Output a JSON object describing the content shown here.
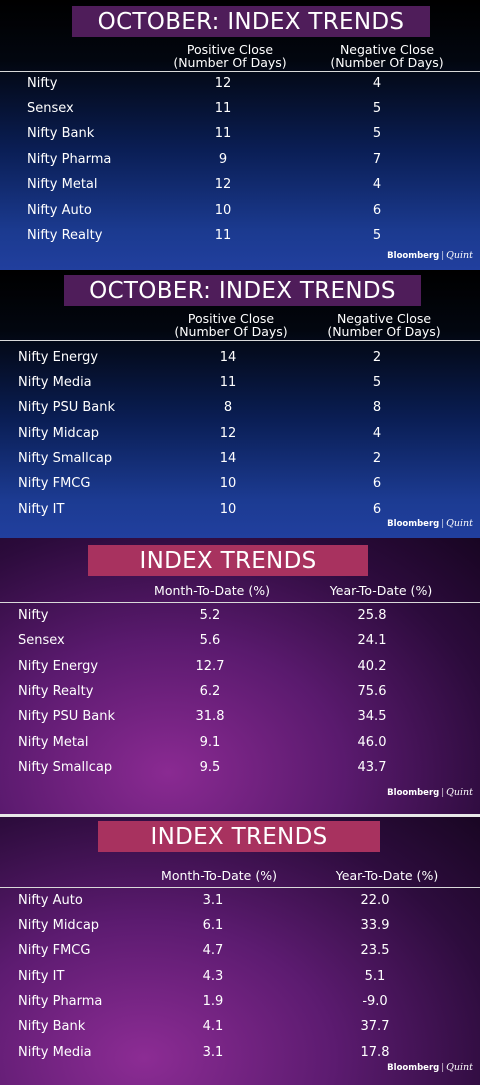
{
  "panels": [
    {
      "title": "OCTOBER: INDEX TRENDS",
      "col1": [
        "Positive Close",
        "(Number Of Days)"
      ],
      "col2": [
        "Negative Close",
        "(Number Of Days)"
      ],
      "rows": [
        {
          "name": "Nifty",
          "a": "12",
          "b": "4"
        },
        {
          "name": "Sensex",
          "a": "11",
          "b": "5"
        },
        {
          "name": "Nifty Bank",
          "a": "11",
          "b": "5"
        },
        {
          "name": "Nifty Pharma",
          "a": "9",
          "b": "7"
        },
        {
          "name": "Nifty Metal",
          "a": "12",
          "b": "4"
        },
        {
          "name": "Nifty Auto",
          "a": "10",
          "b": "6"
        },
        {
          "name": "Nifty Realty",
          "a": "11",
          "b": "5"
        }
      ],
      "brand": {
        "left": "Bloomberg",
        "sep": "|",
        "right": "Quint"
      }
    },
    {
      "title": "OCTOBER: INDEX TRENDS",
      "col1": [
        "Positive Close",
        "(Number Of Days)"
      ],
      "col2": [
        "Negative Close",
        "(Number Of Days)"
      ],
      "rows": [
        {
          "name": "Nifty Energy",
          "a": "14",
          "b": "2"
        },
        {
          "name": "Nifty Media",
          "a": "11",
          "b": "5"
        },
        {
          "name": "Nifty PSU Bank",
          "a": "8",
          "b": "8"
        },
        {
          "name": "Nifty Midcap",
          "a": "12",
          "b": "4"
        },
        {
          "name": "Nifty Smallcap",
          "a": "14",
          "b": "2"
        },
        {
          "name": "Nifty FMCG",
          "a": "10",
          "b": "6"
        },
        {
          "name": "Nifty IT",
          "a": "10",
          "b": "6"
        }
      ],
      "brand": {
        "left": "Bloomberg",
        "sep": "|",
        "right": "Quint"
      }
    },
    {
      "title": "INDEX TRENDS",
      "col1": [
        "Month-To-Date (%)"
      ],
      "col2": [
        "Year-To-Date (%)"
      ],
      "rows": [
        {
          "name": "Nifty",
          "a": "5.2",
          "b": "25.8"
        },
        {
          "name": "Sensex",
          "a": "5.6",
          "b": "24.1"
        },
        {
          "name": "Nifty Energy",
          "a": "12.7",
          "b": "40.2"
        },
        {
          "name": "Nifty Realty",
          "a": "6.2",
          "b": "75.6"
        },
        {
          "name": "Nifty PSU Bank",
          "a": "31.8",
          "b": "34.5"
        },
        {
          "name": "Nifty Metal",
          "a": "9.1",
          "b": "46.0"
        },
        {
          "name": "Nifty Smallcap",
          "a": "9.5",
          "b": "43.7"
        }
      ],
      "brand": {
        "left": "Bloomberg",
        "sep": "|",
        "right": "Quint"
      }
    },
    {
      "title": "INDEX TRENDS",
      "col1": [
        "Month-To-Date (%)"
      ],
      "col2": [
        "Year-To-Date (%)"
      ],
      "rows": [
        {
          "name": "Nifty Auto",
          "a": "3.1",
          "b": "22.0"
        },
        {
          "name": "Nifty Midcap",
          "a": "6.1",
          "b": "33.9"
        },
        {
          "name": "Nifty FMCG",
          "a": "4.7",
          "b": "23.5"
        },
        {
          "name": "Nifty IT",
          "a": "4.3",
          "b": "5.1"
        },
        {
          "name": "Nifty Pharma",
          "a": "1.9",
          "b": "-9.0"
        },
        {
          "name": "Nifty Bank",
          "a": "4.1",
          "b": "37.7"
        },
        {
          "name": "Nifty Media",
          "a": "3.1",
          "b": "17.8"
        }
      ],
      "brand": {
        "left": "Bloomberg",
        "sep": "|",
        "right": "Quint"
      }
    }
  ]
}
